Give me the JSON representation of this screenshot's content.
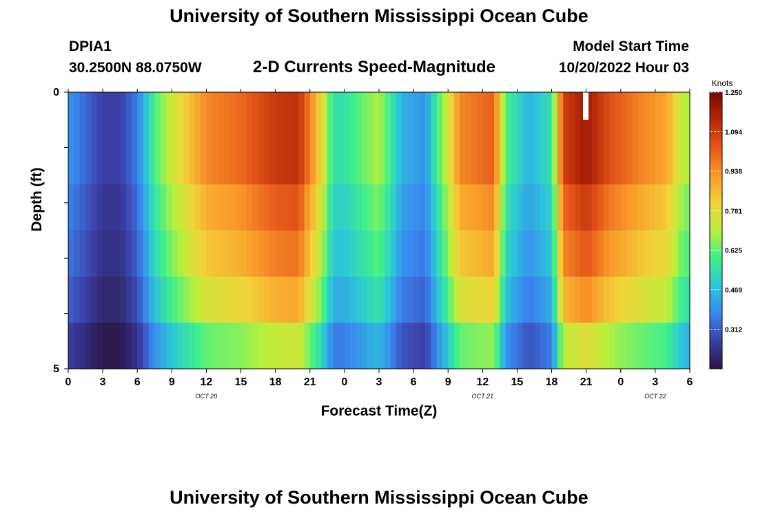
{
  "header": {
    "title": "University of Southern Mississippi Ocean Cube",
    "station": "DPIA1",
    "coords": "30.2500N  88.0750W",
    "subtitle": "2-D Currents Speed-Magnitude",
    "model_start_label": "Model Start Time",
    "model_start_value": "10/20/2022 Hour 03"
  },
  "footer": {
    "title": "University of Southern Mississippi Ocean Cube"
  },
  "chart_data": {
    "type": "heatmap",
    "title": "2-D Currents Speed-Magnitude",
    "xlabel": "Forecast Time(Z)",
    "ylabel": "Depth (ft)",
    "x_tick_labels": [
      "0",
      "3",
      "6",
      "9",
      "12",
      "15",
      "18",
      "21",
      "0",
      "3",
      "6",
      "9",
      "12",
      "15",
      "18",
      "21",
      "0",
      "3",
      "6"
    ],
    "x_date_labels": [
      {
        "label": "OCT 20",
        "at_tick": 4
      },
      {
        "label": "OCT 21",
        "at_tick": 12
      },
      {
        "label": "OCT 22",
        "at_tick": 17
      }
    ],
    "x_hours_from_start": [
      0,
      54
    ],
    "y_tick_labels": [
      "0",
      "5"
    ],
    "ylim": [
      0,
      5
    ],
    "depth_rows": 6,
    "colorbar": {
      "unit": "Knots",
      "ticks": [
        "1.250",
        "1.094",
        "0.938",
        "0.781",
        "0.625",
        "0.469",
        "0.312"
      ],
      "range": [
        0.156,
        1.25
      ],
      "colors": [
        "#2a1440",
        "#3b3fa8",
        "#3a86f0",
        "#2cc6d9",
        "#3ff08a",
        "#b8f03c",
        "#f2d43a",
        "#f99a29",
        "#e6561a",
        "#b62806",
        "#7a0702"
      ]
    },
    "speed_series_surface": [
      {
        "hour": 0,
        "value": 0.4
      },
      {
        "hour": 1.5,
        "value": 0.33
      },
      {
        "hour": 3,
        "value": 0.26
      },
      {
        "hour": 4.5,
        "value": 0.26
      },
      {
        "hour": 6,
        "value": 0.36
      },
      {
        "hour": 7.5,
        "value": 0.6
      },
      {
        "hour": 9,
        "value": 0.74
      },
      {
        "hour": 12,
        "value": 0.95
      },
      {
        "hour": 15,
        "value": 1.0
      },
      {
        "hour": 18,
        "value": 1.1
      },
      {
        "hour": 20,
        "value": 1.12
      },
      {
        "hour": 22,
        "value": 0.8
      },
      {
        "hour": 23,
        "value": 0.55
      },
      {
        "hour": 24,
        "value": 0.55
      },
      {
        "hour": 27,
        "value": 0.7
      },
      {
        "hour": 29,
        "value": 0.45
      },
      {
        "hour": 31,
        "value": 0.4
      },
      {
        "hour": 33,
        "value": 0.75
      },
      {
        "hour": 34,
        "value": 0.95
      },
      {
        "hour": 37,
        "value": 1.02
      },
      {
        "hour": 38,
        "value": 0.6
      },
      {
        "hour": 40,
        "value": 0.45
      },
      {
        "hour": 42,
        "value": 0.55
      },
      {
        "hour": 43,
        "value": 1.08
      },
      {
        "hour": 45,
        "value": 1.18
      },
      {
        "hour": 47,
        "value": 1.05
      },
      {
        "hour": 50,
        "value": 0.95
      },
      {
        "hour": 52,
        "value": 0.9
      },
      {
        "hour": 53.5,
        "value": 0.7
      }
    ]
  }
}
